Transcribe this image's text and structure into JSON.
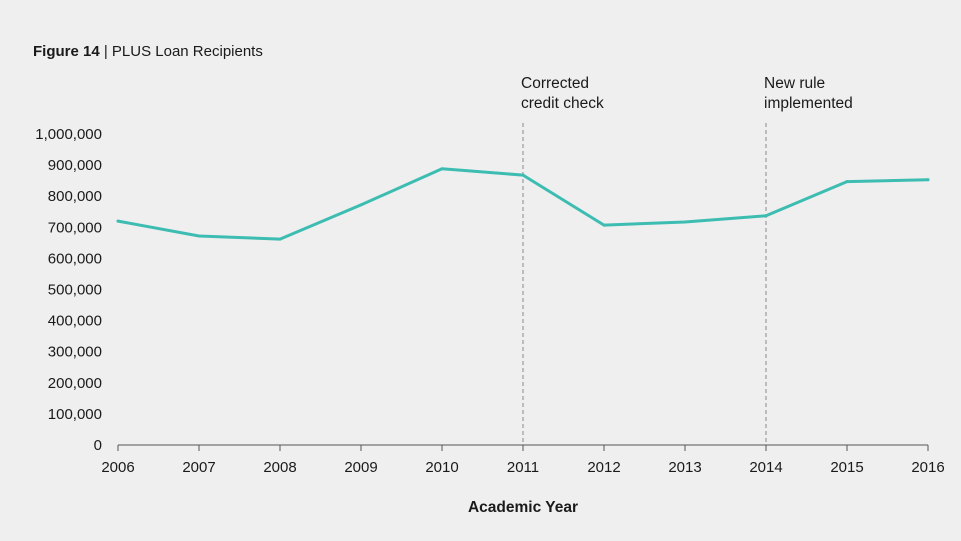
{
  "figure": {
    "number_label": "Figure 14",
    "separator": " | ",
    "title": "PLUS Loan Recipients"
  },
  "colors": {
    "background": "#efefef",
    "line": "#3dbdb2",
    "axis": "#555555",
    "annotation_line": "#9a9a9a",
    "text": "#1a1a1a"
  },
  "chart_data": {
    "type": "line",
    "title": "PLUS Loan Recipients",
    "xlabel": "Academic Year",
    "ylabel": "",
    "x": [
      "2006",
      "2007",
      "2008",
      "2009",
      "2010",
      "2011",
      "2012",
      "2013",
      "2014",
      "2015",
      "2016"
    ],
    "ylim": [
      0,
      1000000
    ],
    "yticks": [
      0,
      100000,
      200000,
      300000,
      400000,
      500000,
      600000,
      700000,
      800000,
      900000,
      1000000
    ],
    "ytick_labels": [
      "0",
      "100,000",
      "200,000",
      "300,000",
      "400,000",
      "500,000",
      "600,000",
      "700,000",
      "800,000",
      "900,000",
      "1,000,000"
    ],
    "grid": false,
    "series": [
      {
        "name": "PLUS Loan Recipients",
        "values": [
          720000,
          672000,
          662000,
          772000,
          888000,
          868000,
          707000,
          717000,
          737000,
          847000,
          853000
        ]
      }
    ],
    "annotations": [
      {
        "x": "2011",
        "lines": [
          "Corrected",
          "credit check"
        ]
      },
      {
        "x": "2014",
        "lines": [
          "New rule",
          "implemented"
        ]
      }
    ]
  }
}
